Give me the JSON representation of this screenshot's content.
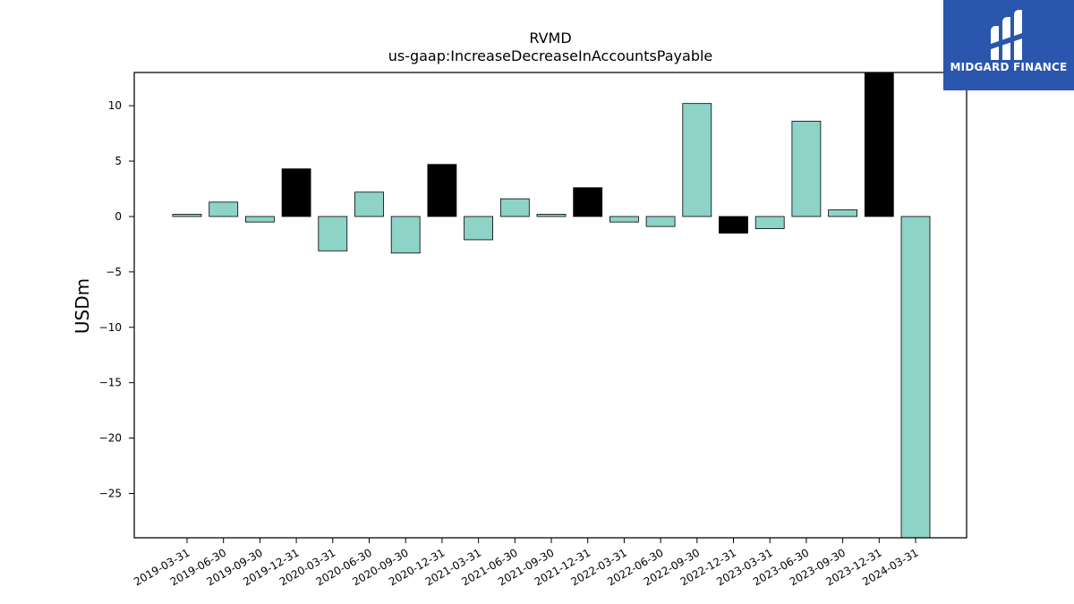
{
  "chart_data": {
    "type": "bar",
    "title": "RVMD",
    "subtitle": "us-gaap:IncreaseDecreaseInAccountsPayable",
    "xlabel": "",
    "ylabel": "USDm",
    "ylim": [
      -29,
      13
    ],
    "yticks": [
      10,
      5,
      0,
      -5,
      -10,
      -15,
      -20,
      -25
    ],
    "ytick_labels": [
      "10",
      "5",
      "0",
      "−5",
      "−10",
      "−15",
      "−20",
      "−25"
    ],
    "grid": false,
    "categories": [
      "2019-03-31",
      "2019-06-30",
      "2019-09-30",
      "2019-12-31",
      "2020-03-31",
      "2020-06-30",
      "2020-09-30",
      "2020-12-31",
      "2021-03-31",
      "2021-06-30",
      "2021-09-30",
      "2021-12-31",
      "2022-03-31",
      "2022-06-30",
      "2022-09-30",
      "2022-12-31",
      "2023-03-31",
      "2023-06-30",
      "2023-09-30",
      "2023-12-31",
      "2024-03-31"
    ],
    "values": [
      0.2,
      1.3,
      -0.5,
      4.3,
      -3.1,
      2.2,
      -3.3,
      4.7,
      -2.1,
      1.6,
      0.2,
      2.6,
      -0.5,
      -0.9,
      10.2,
      -1.5,
      -1.1,
      8.6,
      0.6,
      13.5,
      -29.5
    ],
    "colors": [
      "#8dd3c7",
      "#8dd3c7",
      "#8dd3c7",
      "#000000",
      "#8dd3c7",
      "#8dd3c7",
      "#8dd3c7",
      "#000000",
      "#8dd3c7",
      "#8dd3c7",
      "#8dd3c7",
      "#000000",
      "#8dd3c7",
      "#8dd3c7",
      "#8dd3c7",
      "#000000",
      "#8dd3c7",
      "#8dd3c7",
      "#8dd3c7",
      "#000000",
      "#8dd3c7"
    ]
  },
  "logo": {
    "text": "MIDGARD FINANCE",
    "mark_icon": "midgard-finance-logo-icon",
    "background": "#2a56ad"
  }
}
